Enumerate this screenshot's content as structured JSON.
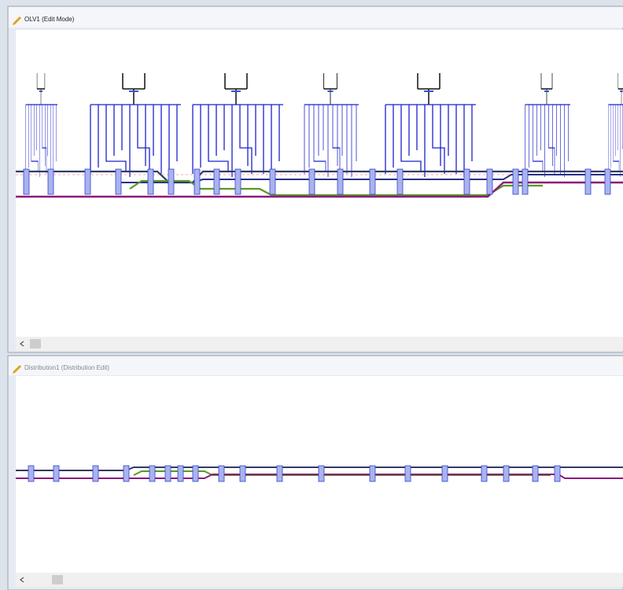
{
  "windows": [
    {
      "title": "OLV1 (Edit Mode)"
    },
    {
      "title": "Distribution1 (Distribution Edit)"
    }
  ]
}
